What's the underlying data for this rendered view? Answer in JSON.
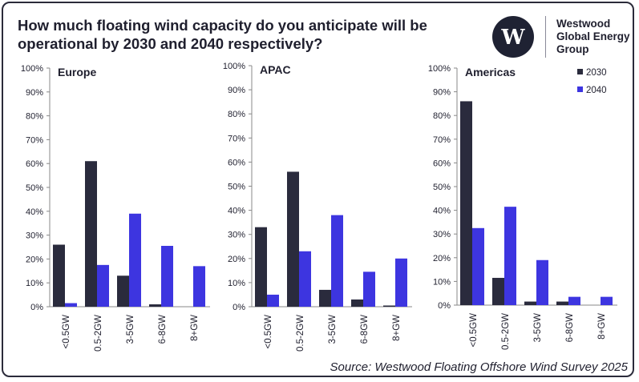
{
  "title": "How much floating wind capacity do you anticipate will be operational by 2030 and 2040 respectively?",
  "logo": {
    "line1": "Westwood",
    "line2": "Global Energy",
    "line3": "Group"
  },
  "source": "Source: Westwood Floating Offshore Wind Survey 2025",
  "colors": {
    "2030": "#2a2b3d",
    "2040": "#3d35e0",
    "text": "#1f1f2e",
    "axis": "#888888"
  },
  "chart_data": [
    {
      "type": "bar",
      "title": "Europe",
      "categories": [
        "<0.5GW",
        "0.5-2GW",
        "3-5GW",
        "6-8GW",
        "8+GW"
      ],
      "series": [
        {
          "name": "2030",
          "values": [
            26,
            61,
            13,
            1,
            0
          ]
        },
        {
          "name": "2040",
          "values": [
            1.5,
            17.5,
            39,
            25.5,
            17
          ]
        }
      ],
      "yticks": [
        "0%",
        "10%",
        "20%",
        "30%",
        "40%",
        "50%",
        "60%",
        "70%",
        "80%",
        "90%",
        "100%"
      ],
      "ylim": [
        0,
        100
      ]
    },
    {
      "type": "bar",
      "title": "APAC",
      "categories": [
        "<0.5GW",
        "0.5-2GW",
        "3-5GW",
        "6-8GW",
        "8+GW"
      ],
      "series": [
        {
          "name": "2030",
          "values": [
            33,
            56,
            7,
            3,
            0.5
          ]
        },
        {
          "name": "2040",
          "values": [
            5,
            23,
            38,
            14.5,
            20
          ]
        }
      ],
      "yticks": [
        "0%",
        "10%",
        "20%",
        "30%",
        "40%",
        "50%",
        "60%",
        "70%",
        "80%",
        "90%",
        "100%"
      ],
      "ylim": [
        0,
        100
      ]
    },
    {
      "type": "bar",
      "title": "Americas",
      "categories": [
        "<0.5GW",
        "0.5-2GW",
        "3-5GW",
        "6-8GW",
        "8+GW"
      ],
      "series": [
        {
          "name": "2030",
          "values": [
            86,
            11.5,
            1.5,
            1.5,
            0
          ]
        },
        {
          "name": "2040",
          "values": [
            32.5,
            41.5,
            19,
            3.5,
            3.5
          ]
        }
      ],
      "yticks": [
        "0%",
        "10%",
        "20%",
        "30%",
        "40%",
        "50%",
        "60%",
        "70%",
        "80%",
        "90%",
        "100%"
      ],
      "ylim": [
        0,
        100
      ],
      "legend": [
        "2030",
        "2040"
      ]
    }
  ]
}
